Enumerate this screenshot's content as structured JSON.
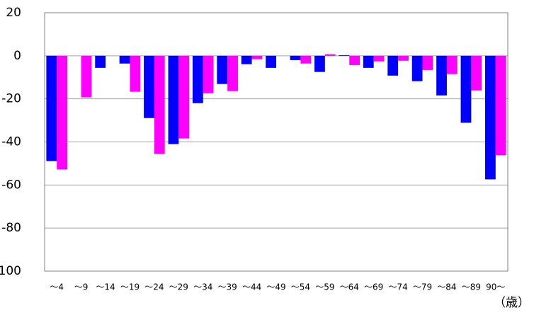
{
  "chart_data": {
    "type": "bar",
    "categories": [
      "～4",
      "～9",
      "～14",
      "～19",
      "～24",
      "～29",
      "～34",
      "～39",
      "～44",
      "～49",
      "～54",
      "～59",
      "～64",
      "～69",
      "～74",
      "～79",
      "～84",
      "～89",
      "90～"
    ],
    "series": [
      {
        "color": "#0000ff",
        "values": [
          -48.9,
          0,
          -5.6,
          -3.6,
          -28.9,
          -41,
          -22,
          -13.1,
          -3.9,
          -5.6,
          -2,
          -7.5,
          0.3,
          -5.6,
          -9.2,
          -11.8,
          -18.4,
          -31.1,
          -57.4
        ]
      },
      {
        "color": "#ff00ff",
        "values": [
          -52.8,
          -19.3,
          0,
          -16.7,
          -45.6,
          -38.4,
          -17.4,
          -16.4,
          -1.6,
          0,
          -3.6,
          0.7,
          -4.3,
          -2.6,
          -2.3,
          -6.6,
          -8.5,
          -16.1,
          -46.2
        ]
      }
    ],
    "x_label": "（歳）",
    "ylim": [
      -100,
      20
    ],
    "yticks": [
      {
        "value": -100,
        "label": "100"
      },
      -80,
      -60,
      -40,
      -20,
      0,
      20
    ],
    "grid": true
  }
}
